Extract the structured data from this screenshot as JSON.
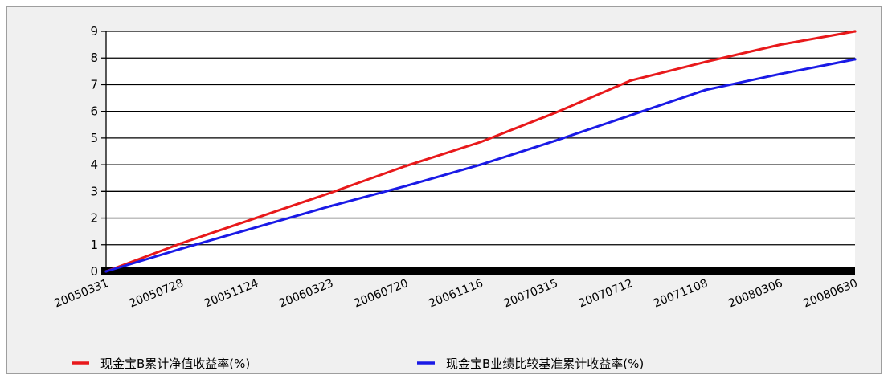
{
  "chart_data": {
    "type": "line",
    "title": "",
    "xlabel": "",
    "ylabel": "",
    "ylim": [
      0,
      9
    ],
    "yticks": [
      "0",
      "1",
      "2",
      "3",
      "4",
      "5",
      "6",
      "7",
      "8",
      "9"
    ],
    "x_ticks": [
      "20050331",
      "20050728",
      "20051124",
      "20060323",
      "20060720",
      "20061116",
      "20070315",
      "20070712",
      "20071108",
      "20080306",
      "20080630"
    ],
    "grid": true,
    "legend": "bottom",
    "series": [
      {
        "name": "现金宝B累计净值收益率(%)",
        "color": "#e8191b",
        "values": [
          0,
          1.05,
          2.0,
          2.95,
          3.95,
          4.85,
          5.95,
          7.15,
          7.85,
          8.5,
          9.0
        ]
      },
      {
        "name": "现金宝B业绩比较基准累计收益率(%)",
        "color": "#1a1ae6",
        "values": [
          0,
          0.85,
          1.65,
          2.45,
          3.2,
          4.0,
          4.9,
          5.85,
          6.8,
          7.4,
          7.95
        ]
      }
    ]
  }
}
